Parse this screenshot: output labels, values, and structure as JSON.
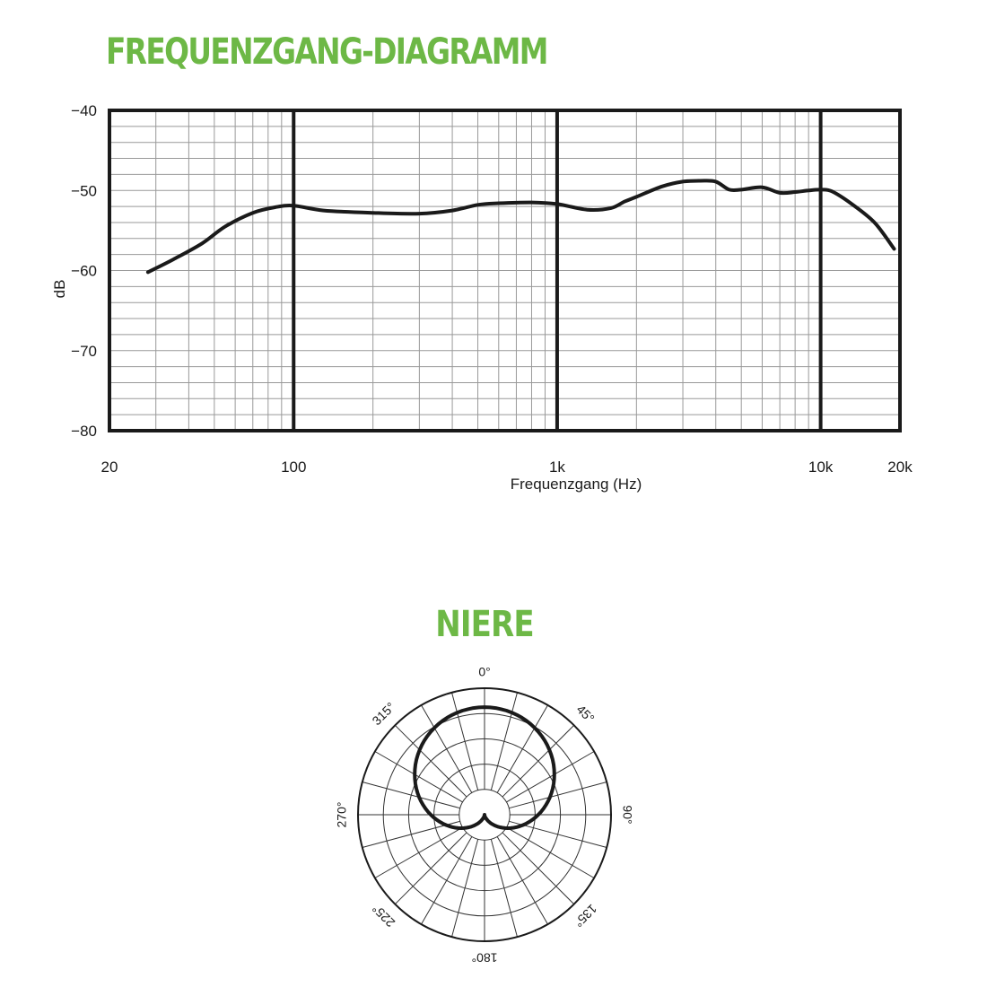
{
  "chart_data": [
    {
      "type": "line",
      "title": "FREQUENZGANG-DIAGRAMM",
      "xlabel": "Frequenzgang (Hz)",
      "ylabel": "dB",
      "x_scale": "log",
      "xlim": [
        20,
        20000
      ],
      "ylim": [
        -80,
        -40
      ],
      "x_ticks": [
        {
          "value": 20,
          "label": "20"
        },
        {
          "value": 100,
          "label": "100"
        },
        {
          "value": 1000,
          "label": "1k"
        },
        {
          "value": 10000,
          "label": "10k"
        },
        {
          "value": 20000,
          "label": "20k"
        }
      ],
      "y_ticks": [
        {
          "value": -40,
          "label": "−40"
        },
        {
          "value": -50,
          "label": "−50"
        },
        {
          "value": -60,
          "label": "−60"
        },
        {
          "value": -70,
          "label": "−70"
        },
        {
          "value": -80,
          "label": "−80"
        }
      ],
      "grid": true,
      "line_color": "#1a1a1a",
      "series": [
        {
          "x": [
            28,
            35,
            45,
            55,
            70,
            85,
            100,
            130,
            200,
            300,
            400,
            500,
            600,
            800,
            1000,
            1300,
            1600,
            1800,
            2000,
            2500,
            3000,
            3500,
            4000,
            4500,
            5000,
            6000,
            7000,
            8000,
            9000,
            10000,
            11000,
            13000,
            16000,
            19000
          ],
          "y": [
            -60.2,
            -58.6,
            -56.6,
            -54.5,
            -52.8,
            -52.1,
            -51.9,
            -52.5,
            -52.8,
            -52.9,
            -52.5,
            -51.8,
            -51.6,
            -51.5,
            -51.7,
            -52.4,
            -52.2,
            -51.4,
            -50.8,
            -49.5,
            -48.9,
            -48.8,
            -48.9,
            -49.9,
            -49.9,
            -49.6,
            -50.3,
            -50.2,
            -50.0,
            -49.9,
            -50.1,
            -51.6,
            -54.0,
            -57.3
          ]
        }
      ]
    },
    {
      "type": "polar",
      "title": "NIERE",
      "pattern": "cardioid",
      "line_color": "#1a1a1a",
      "angle_labels": [
        {
          "angle": 0,
          "label": "0°"
        },
        {
          "angle": 45,
          "label": "45°"
        },
        {
          "angle": 90,
          "label": "90°"
        },
        {
          "angle": 135,
          "label": "135°"
        },
        {
          "angle": 180,
          "label": "180°"
        },
        {
          "angle": 225,
          "label": "225°"
        },
        {
          "angle": 270,
          "label": "270°"
        },
        {
          "angle": 315,
          "label": "315°"
        }
      ],
      "series": [
        {
          "angles": [
            0,
            30,
            60,
            90,
            120,
            150,
            180,
            210,
            240,
            270,
            300,
            330,
            360
          ],
          "values": [
            1.0,
            0.93,
            0.75,
            0.5,
            0.25,
            0.07,
            0.0,
            0.07,
            0.25,
            0.5,
            0.75,
            0.93,
            1.0
          ]
        }
      ]
    }
  ]
}
